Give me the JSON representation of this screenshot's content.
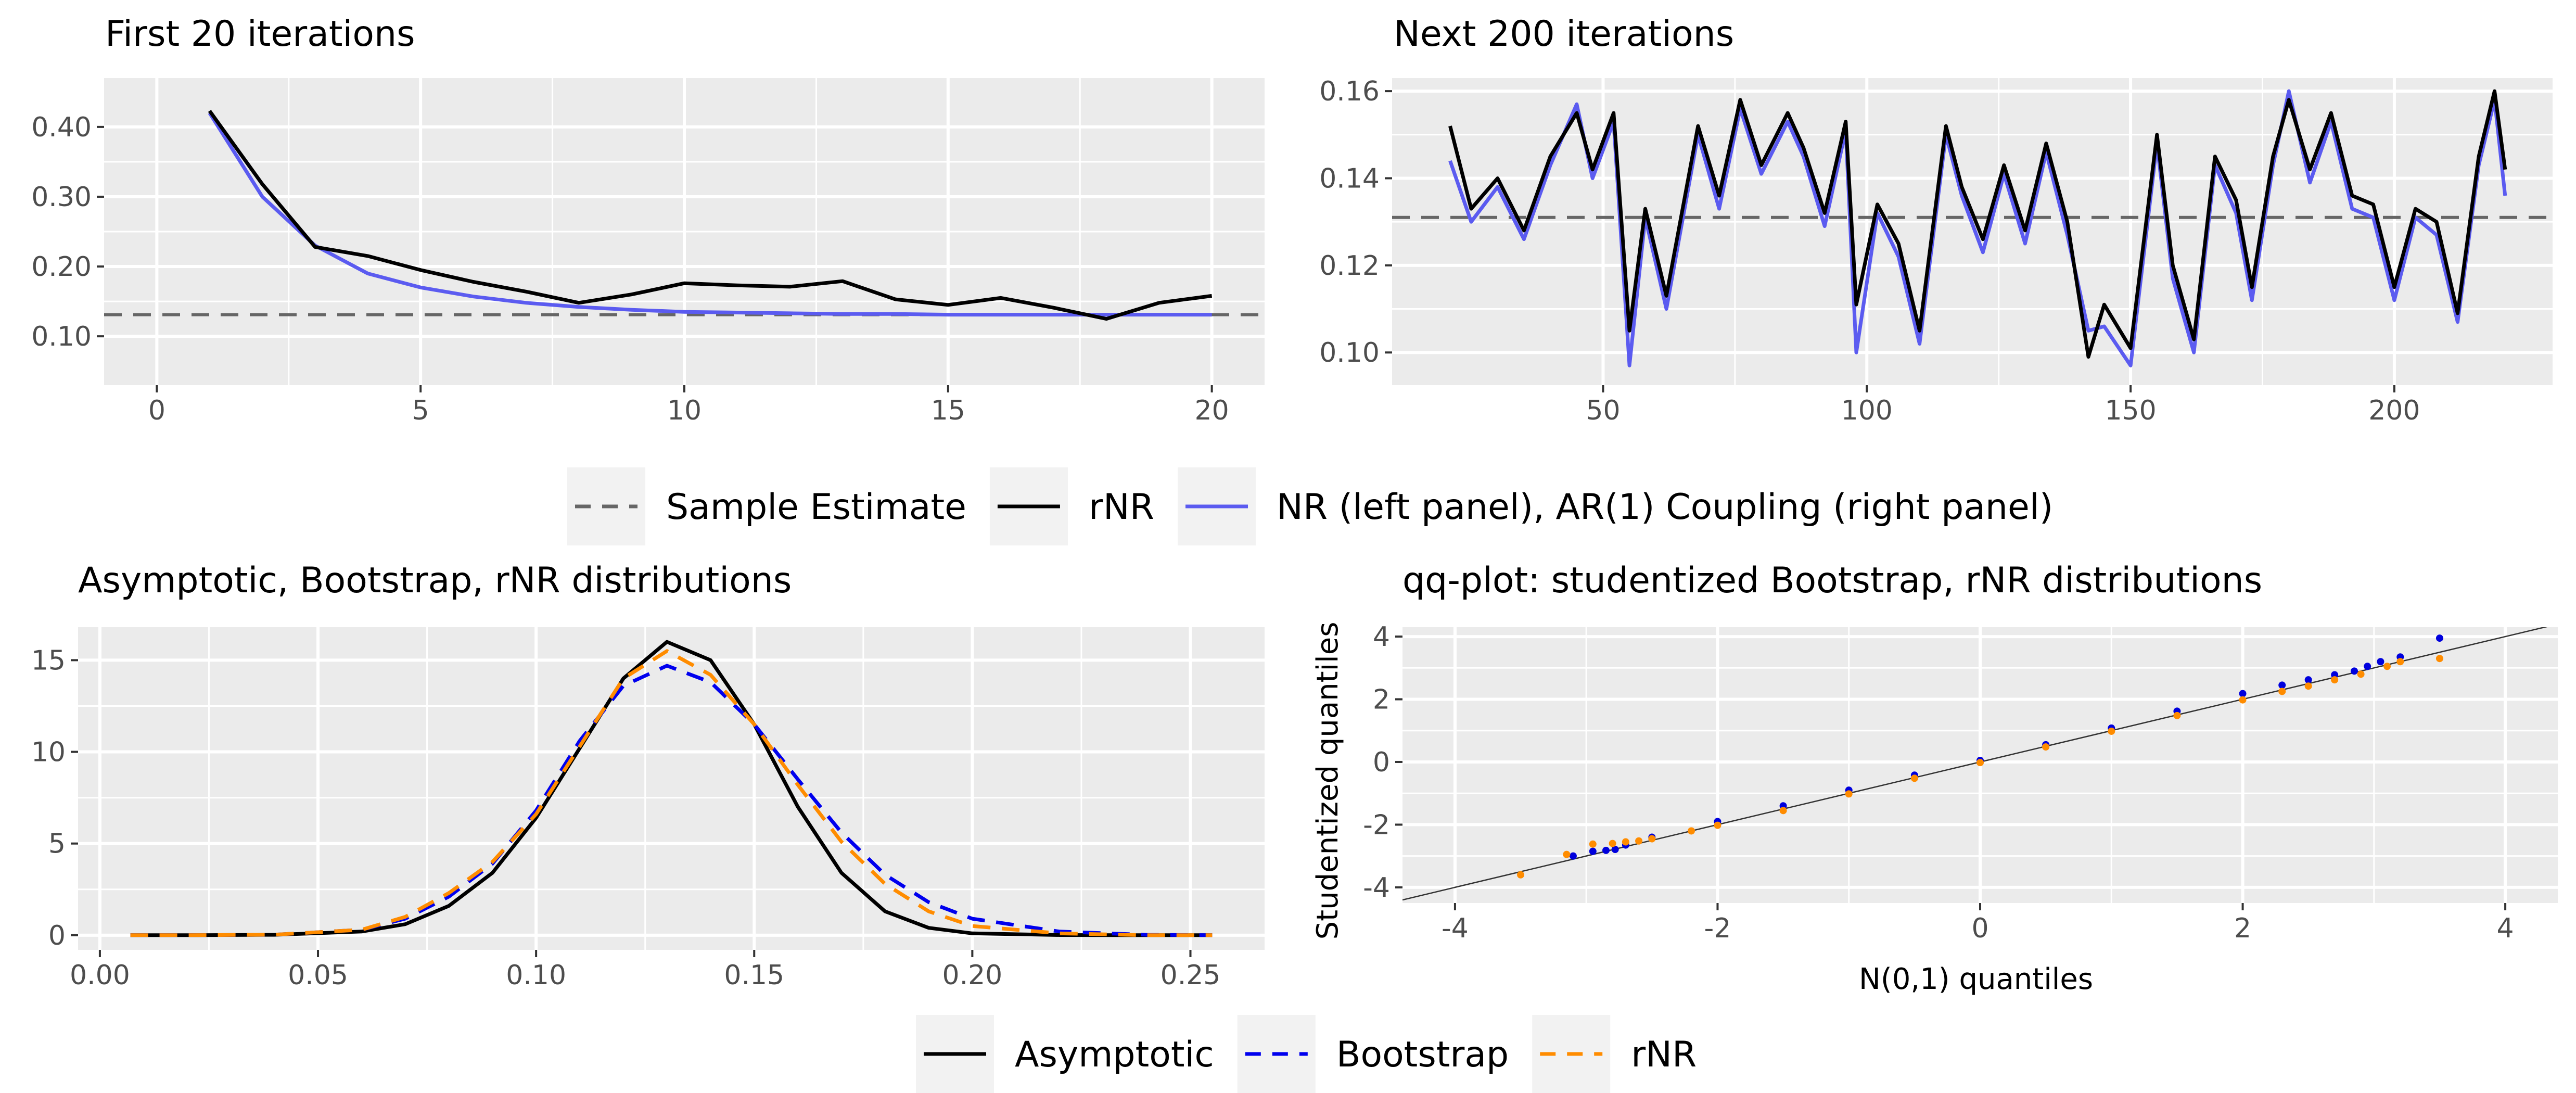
{
  "legend_top": {
    "items": [
      {
        "label": "Sample Estimate",
        "style": "dashed",
        "color": "#666666"
      },
      {
        "label": "rNR",
        "style": "solid",
        "color": "#000000"
      },
      {
        "label": "NR (left panel), AR(1) Coupling (right panel)",
        "style": "solid",
        "color": "#5b5bf0"
      }
    ]
  },
  "legend_bottom": {
    "items": [
      {
        "label": "Asymptotic",
        "style": "solid",
        "color": "#000000"
      },
      {
        "label": "Bootstrap",
        "style": "dashed",
        "color": "#0000ee"
      },
      {
        "label": "rNR",
        "style": "dashed",
        "color": "#ff8c00"
      }
    ]
  },
  "chart_data": [
    {
      "type": "line",
      "title": "First 20 iterations",
      "xlabel": "",
      "ylabel": "",
      "xlim": [
        -1,
        21
      ],
      "ylim": [
        0.03,
        0.47
      ],
      "xticks": [
        0,
        5,
        10,
        15,
        20
      ],
      "yticks": [
        0.1,
        0.2,
        0.3,
        0.4
      ],
      "ytick_labels": [
        "0.10",
        "0.20",
        "0.30",
        "0.40"
      ],
      "hline": 0.131,
      "grid": true,
      "series": [
        {
          "name": "rNR",
          "color": "#000000",
          "x": [
            1,
            2,
            3,
            4,
            5,
            6,
            7,
            8,
            9,
            10,
            11,
            12,
            13,
            14,
            15,
            16,
            17,
            18,
            19,
            20
          ],
          "y": [
            0.423,
            0.318,
            0.228,
            0.215,
            0.195,
            0.178,
            0.164,
            0.148,
            0.16,
            0.176,
            0.173,
            0.171,
            0.179,
            0.153,
            0.145,
            0.155,
            0.141,
            0.125,
            0.148,
            0.158
          ]
        },
        {
          "name": "NR (left panel), AR(1) Coupling (right panel)",
          "color": "#5b5bf0",
          "x": [
            1,
            2,
            3,
            4,
            5,
            6,
            7,
            8,
            9,
            10,
            11,
            12,
            13,
            14,
            15,
            16,
            17,
            18,
            19,
            20
          ],
          "y": [
            0.42,
            0.3,
            0.23,
            0.19,
            0.17,
            0.157,
            0.148,
            0.142,
            0.138,
            0.135,
            0.134,
            0.133,
            0.132,
            0.132,
            0.131,
            0.131,
            0.131,
            0.131,
            0.131,
            0.131
          ]
        }
      ]
    },
    {
      "type": "line",
      "title": "Next 200 iterations",
      "xlabel": "",
      "ylabel": "",
      "xlim": [
        10,
        230
      ],
      "ylim": [
        0.0925,
        0.163
      ],
      "xticks": [
        50,
        100,
        150,
        200
      ],
      "yticks": [
        0.1,
        0.12,
        0.14,
        0.16
      ],
      "ytick_labels": [
        "0.10",
        "0.12",
        "0.14",
        "0.16"
      ],
      "hline": 0.131,
      "grid": true,
      "series": [
        {
          "name": "rNR",
          "color": "#000000",
          "x": [
            21,
            25,
            30,
            35,
            40,
            45,
            48,
            52,
            55,
            58,
            62,
            68,
            72,
            76,
            80,
            85,
            88,
            92,
            96,
            98,
            102,
            106,
            110,
            115,
            118,
            122,
            126,
            130,
            134,
            138,
            142,
            145,
            150,
            155,
            158,
            162,
            166,
            170,
            173,
            177,
            180,
            184,
            188,
            192,
            196,
            200,
            204,
            208,
            212,
            216,
            219,
            221
          ],
          "y": [
            0.152,
            0.133,
            0.14,
            0.128,
            0.145,
            0.155,
            0.142,
            0.155,
            0.105,
            0.133,
            0.113,
            0.152,
            0.136,
            0.158,
            0.143,
            0.155,
            0.147,
            0.132,
            0.153,
            0.111,
            0.134,
            0.125,
            0.105,
            0.152,
            0.138,
            0.126,
            0.143,
            0.128,
            0.148,
            0.13,
            0.099,
            0.111,
            0.101,
            0.15,
            0.12,
            0.103,
            0.145,
            0.135,
            0.115,
            0.145,
            0.158,
            0.142,
            0.155,
            0.136,
            0.134,
            0.115,
            0.133,
            0.13,
            0.109,
            0.145,
            0.16,
            0.142
          ]
        },
        {
          "name": "NR (left panel), AR(1) Coupling (right panel)",
          "color": "#5b5bf0",
          "x": [
            21,
            25,
            30,
            35,
            40,
            45,
            48,
            52,
            55,
            58,
            62,
            68,
            72,
            76,
            80,
            85,
            88,
            92,
            96,
            98,
            102,
            106,
            110,
            115,
            118,
            122,
            126,
            130,
            134,
            138,
            142,
            145,
            150,
            155,
            158,
            162,
            166,
            170,
            173,
            177,
            180,
            184,
            188,
            192,
            196,
            200,
            204,
            208,
            212,
            216,
            219,
            221
          ],
          "y": [
            0.144,
            0.13,
            0.138,
            0.126,
            0.143,
            0.157,
            0.14,
            0.153,
            0.097,
            0.131,
            0.11,
            0.15,
            0.133,
            0.156,
            0.141,
            0.153,
            0.145,
            0.129,
            0.151,
            0.1,
            0.132,
            0.122,
            0.102,
            0.15,
            0.136,
            0.123,
            0.141,
            0.125,
            0.146,
            0.127,
            0.105,
            0.106,
            0.097,
            0.148,
            0.117,
            0.1,
            0.143,
            0.132,
            0.112,
            0.143,
            0.16,
            0.139,
            0.153,
            0.133,
            0.131,
            0.112,
            0.131,
            0.127,
            0.107,
            0.143,
            0.158,
            0.136
          ]
        }
      ]
    },
    {
      "type": "line",
      "title": "Asymptotic, Bootstrap, rNR distributions",
      "xlabel": "",
      "ylabel": "",
      "xlim": [
        -0.005,
        0.267
      ],
      "ylim": [
        -0.8,
        16.8
      ],
      "xticks": [
        0.0,
        0.05,
        0.1,
        0.15,
        0.2,
        0.25
      ],
      "xtick_labels": [
        "0.00",
        "0.05",
        "0.10",
        "0.15",
        "0.20",
        "0.25"
      ],
      "yticks": [
        0,
        5,
        10,
        15
      ],
      "ytick_labels": [
        "0",
        "5",
        "10",
        "15"
      ],
      "grid": true,
      "series": [
        {
          "name": "Asymptotic",
          "color": "#000000",
          "dash": "solid",
          "x": [
            0.007,
            0.02,
            0.04,
            0.06,
            0.07,
            0.08,
            0.09,
            0.1,
            0.11,
            0.12,
            0.13,
            0.14,
            0.15,
            0.16,
            0.17,
            0.18,
            0.19,
            0.2,
            0.22,
            0.24,
            0.255
          ],
          "y": [
            0,
            0,
            0.02,
            0.2,
            0.6,
            1.6,
            3.4,
            6.4,
            10.2,
            14.0,
            16.0,
            15.0,
            11.5,
            7.0,
            3.4,
            1.3,
            0.4,
            0.1,
            0.01,
            0,
            0
          ]
        },
        {
          "name": "Bootstrap",
          "color": "#0000ee",
          "dash": "dashed",
          "x": [
            0.007,
            0.02,
            0.04,
            0.06,
            0.07,
            0.08,
            0.09,
            0.1,
            0.11,
            0.12,
            0.13,
            0.14,
            0.15,
            0.16,
            0.17,
            0.18,
            0.19,
            0.2,
            0.22,
            0.24,
            0.255
          ],
          "y": [
            0,
            0,
            0.03,
            0.3,
            0.9,
            2.1,
            3.9,
            6.8,
            10.6,
            13.6,
            14.7,
            13.8,
            11.5,
            8.5,
            5.6,
            3.3,
            1.8,
            0.9,
            0.2,
            0.02,
            0
          ]
        },
        {
          "name": "rNR",
          "color": "#ff8c00",
          "dash": "dashed",
          "x": [
            0.007,
            0.02,
            0.04,
            0.06,
            0.07,
            0.08,
            0.09,
            0.1,
            0.11,
            0.12,
            0.13,
            0.14,
            0.15,
            0.16,
            0.17,
            0.18,
            0.19,
            0.2,
            0.22,
            0.24,
            0.255
          ],
          "y": [
            0,
            0,
            0.03,
            0.3,
            1.0,
            2.3,
            4.0,
            6.6,
            10.3,
            14.0,
            15.5,
            14.2,
            11.5,
            8.2,
            5.1,
            2.8,
            1.3,
            0.5,
            0.1,
            0,
            0
          ]
        }
      ]
    },
    {
      "type": "scatter",
      "title": "qq-plot: studentized Bootstrap, rNR distributions",
      "xlabel": "N(0,1) quantiles",
      "ylabel": "Studentized quantiles",
      "xlim": [
        -4.4,
        4.4
      ],
      "ylim": [
        -4.5,
        4.3
      ],
      "xticks": [
        -4,
        -2,
        0,
        2,
        4
      ],
      "yticks": [
        -4,
        -2,
        0,
        2,
        4
      ],
      "reference_line": {
        "intercept": 0,
        "slope": 1
      },
      "grid": true,
      "series": [
        {
          "name": "Bootstrap",
          "color": "#0000dd",
          "points": [
            [
              -3.1,
              -3.0
            ],
            [
              -2.95,
              -2.85
            ],
            [
              -2.85,
              -2.82
            ],
            [
              -2.78,
              -2.79
            ],
            [
              -2.7,
              -2.65
            ],
            [
              -2.5,
              -2.4
            ],
            [
              -2.0,
              -1.9
            ],
            [
              -1.5,
              -1.4
            ],
            [
              -1.0,
              -0.9
            ],
            [
              -0.5,
              -0.42
            ],
            [
              0,
              0.05
            ],
            [
              0.5,
              0.55
            ],
            [
              1.0,
              1.08
            ],
            [
              1.5,
              1.62
            ],
            [
              2.0,
              2.18
            ],
            [
              2.3,
              2.45
            ],
            [
              2.5,
              2.62
            ],
            [
              2.7,
              2.78
            ],
            [
              2.85,
              2.9
            ],
            [
              2.95,
              3.05
            ],
            [
              3.05,
              3.2
            ],
            [
              3.2,
              3.35
            ],
            [
              3.5,
              3.95
            ]
          ]
        },
        {
          "name": "rNR",
          "color": "#ff8c00",
          "points": [
            [
              -3.5,
              -3.6
            ],
            [
              -3.15,
              -2.95
            ],
            [
              -2.95,
              -2.62
            ],
            [
              -2.8,
              -2.6
            ],
            [
              -2.7,
              -2.55
            ],
            [
              -2.6,
              -2.52
            ],
            [
              -2.5,
              -2.45
            ],
            [
              -2.2,
              -2.2
            ],
            [
              -2.0,
              -2.02
            ],
            [
              -1.5,
              -1.55
            ],
            [
              -1.0,
              -1.02
            ],
            [
              -0.5,
              -0.52
            ],
            [
              0,
              -0.02
            ],
            [
              0.5,
              0.48
            ],
            [
              1.0,
              0.98
            ],
            [
              1.5,
              1.48
            ],
            [
              2.0,
              1.98
            ],
            [
              2.3,
              2.25
            ],
            [
              2.5,
              2.42
            ],
            [
              2.7,
              2.62
            ],
            [
              2.9,
              2.8
            ],
            [
              3.1,
              3.05
            ],
            [
              3.2,
              3.2
            ],
            [
              3.5,
              3.3
            ]
          ]
        }
      ]
    }
  ]
}
